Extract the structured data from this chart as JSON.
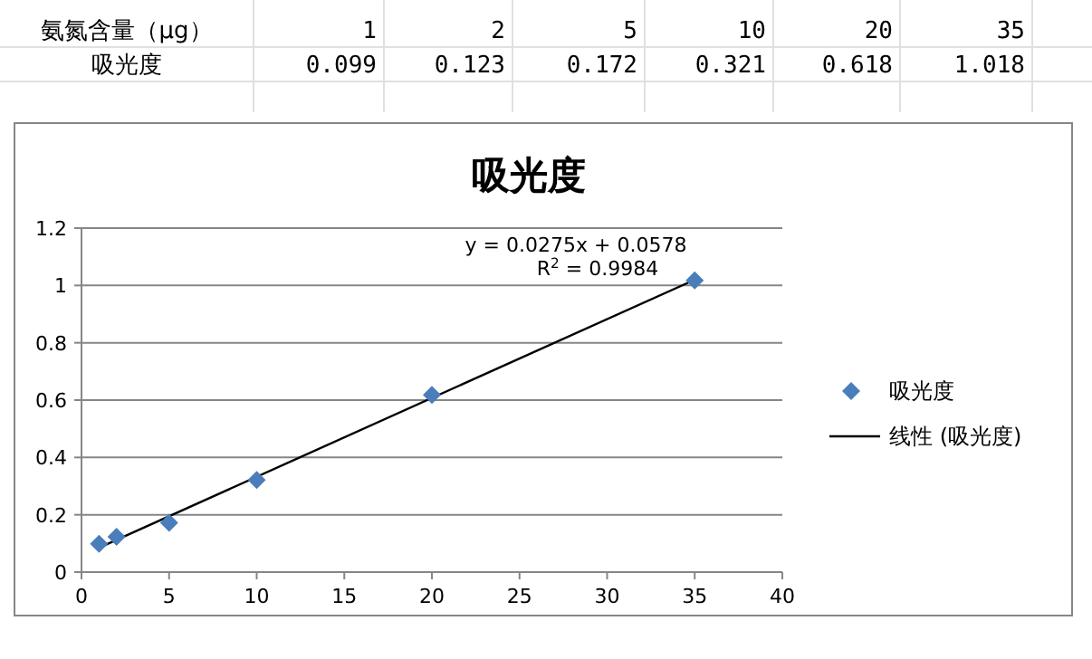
{
  "chart_data": {
    "type": "scatter",
    "title": "吸光度",
    "x": [
      1,
      2,
      5,
      10,
      20,
      35
    ],
    "series": [
      {
        "name": "吸光度",
        "color": "#4a7ebb",
        "marker": "diamond",
        "values": [
          0.099,
          0.123,
          0.172,
          0.321,
          0.618,
          1.018
        ]
      },
      {
        "name": "线性 (吸光度)",
        "type": "line",
        "color": "#000000",
        "x": [
          1,
          35
        ],
        "values": [
          0.085,
          1.02
        ]
      }
    ],
    "xlim": [
      0,
      40
    ],
    "xticks": [
      0,
      5,
      10,
      15,
      20,
      25,
      30,
      35,
      40
    ],
    "ylim": [
      0,
      1.2
    ],
    "yticks": [
      0,
      0.2,
      0.4,
      0.6,
      0.8,
      1,
      1.2
    ],
    "grid": "y",
    "legend": "right",
    "annotations": [
      "氨氮含量（μg）",
      "1",
      "2",
      "5",
      "10",
      "20",
      "35",
      "吸光度",
      "0.099",
      "0.123",
      "0.172",
      "0.321",
      "0.618",
      "1.018",
      "y = 0.0275x + 0.0578",
      "R$^{2}$ = 0.9984"
    ]
  }
}
